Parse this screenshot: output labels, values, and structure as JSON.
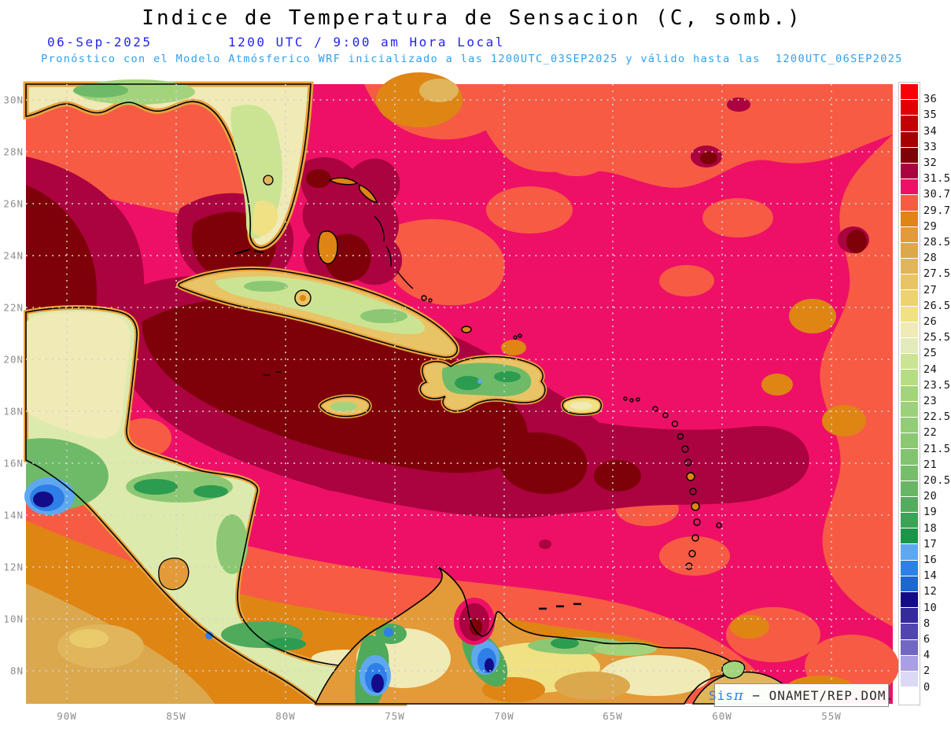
{
  "header": {
    "title": "Indice de Temperatura de Sensacion (C, somb.)",
    "date": "06-Sep-2025",
    "time": "1200 UTC / 9:00 am Hora Local",
    "forecast_note": "Pronóstico con el Modelo Atmósferico WRF inicializado a las 1200UTC_03SEP2025 y válido hasta las  1200UTC_06SEP2025",
    "title_color": "#000000",
    "date_time_color": "#2525EA",
    "forecast_color": "#2E9FF0"
  },
  "map": {
    "lat_labels": [
      "30N",
      "28N",
      "26N",
      "24N",
      "22N",
      "20N",
      "18N",
      "16N",
      "14N",
      "12N",
      "10N",
      "8N"
    ],
    "lat_y": [
      127,
      193,
      259,
      325,
      391,
      457,
      523,
      589,
      655,
      721,
      787,
      853
    ],
    "lon_labels": [
      "90W",
      "85W",
      "80W",
      "75W",
      "70W",
      "65W",
      "60W",
      "55W"
    ],
    "lon_x": [
      85,
      224,
      363,
      502,
      641,
      779,
      918,
      1057
    ],
    "attribution": {
      "system": "Sis",
      "pi": "π",
      "rest": " − ONAMET/REP.DOM."
    }
  },
  "colorbar": {
    "labels": [
      "36",
      "35",
      "34",
      "33",
      "32",
      "31.5",
      "30.7",
      "29.7",
      "29",
      "28.5",
      "28",
      "27.5",
      "27",
      "26.5",
      "26",
      "25.5",
      "25",
      "24",
      "23.5",
      "23",
      "22.5",
      "22",
      "21.5",
      "21",
      "20.5",
      "20",
      "19",
      "18",
      "17",
      "16",
      "14",
      "12",
      "10",
      "8",
      "6",
      "4",
      "2",
      "0"
    ],
    "colors": [
      "#FA0009",
      "#E20005",
      "#C50004",
      "#A70001",
      "#7E0008",
      "#AA0340",
      "#EE1066",
      "#F75B44",
      "#DE8514",
      "#E39A38",
      "#DBA84E",
      "#E0B55C",
      "#E8C466",
      "#EDD271",
      "#F0E184",
      "#EFEAB6",
      "#E3EBBC",
      "#CBE493",
      "#B7DC86",
      "#A3D47C",
      "#9CD07A",
      "#93CC76",
      "#8AC872",
      "#81C46E",
      "#76BE6A",
      "#68B664",
      "#55AC5E",
      "#3DA256",
      "#1D9549",
      "#5FA8F0",
      "#2E7FE8",
      "#1E66D4",
      "#140B89",
      "#342A9C",
      "#5146AE",
      "#7268C0",
      "#A89FE4",
      "#DCD9F6",
      "#FFFFFF"
    ]
  },
  "chart_data": {
    "type": "heatmap",
    "title": "Indice de Temperatura de Sensacion (C, somb.)",
    "units": "C",
    "lat_range": [
      "8N",
      "30N"
    ],
    "lon_range": [
      "90W",
      "55W"
    ],
    "levels": [
      36,
      35,
      34,
      33,
      32,
      31.5,
      30.7,
      29.7,
      29,
      28.5,
      28,
      27.5,
      27,
      26.5,
      26,
      25.5,
      25,
      24,
      23.5,
      23,
      22.5,
      22,
      21.5,
      21,
      20.5,
      20,
      19,
      18,
      17,
      16,
      14,
      12,
      10,
      8,
      6,
      4,
      2,
      0
    ],
    "palette": [
      "#FA0009",
      "#E20005",
      "#C50004",
      "#A70001",
      "#7E0008",
      "#AA0340",
      "#EE1066",
      "#F75B44",
      "#DE8514",
      "#E39A38",
      "#DBA84E",
      "#E0B55C",
      "#E8C466",
      "#EDD271",
      "#F0E184",
      "#EFEAB6",
      "#E3EBBC",
      "#CBE493",
      "#B7DC86",
      "#A3D47C",
      "#9CD07A",
      "#93CC76",
      "#8AC872",
      "#81C46E",
      "#76BE6A",
      "#68B664",
      "#55AC5E",
      "#3DA256",
      "#1D9549",
      "#5FA8F0",
      "#2E7FE8",
      "#1E66D4",
      "#140B89",
      "#342A9C",
      "#5146AE",
      "#7268C0",
      "#A89FE4",
      "#DCD9F6",
      "#FFFFFF"
    ],
    "notable_features": [
      "32-33C (dark maroon) zone over western Gulf of Mexico at map left edge 24-28N",
      "Large 32-33C (dark maroon) zone in NW Caribbean south of Cuba ~85-75W 18-22N",
      "32-33C patches east/southeast of Puerto Rico ~68-62W 15-17N within 31.5-32C band",
      "Background 30.7-31.5C magenta over most Caribbean and Atlantic water",
      "29.7-30.7C coral over northern Atlantic portion, right edge and southern Caribbean",
      "28.5-29.7C orange band south of ~11N and in eastern Pacific corner",
      "Cool blue spots (8-16C) over Guatemala highlands and Andes of Colombia/Venezuela",
      "Green interiors (17-25C) over Cuba, Hispaniola, Central America and Venezuelan ranges",
      "Hot crimson spot at Lake Maracaibo, Venezuela"
    ]
  }
}
